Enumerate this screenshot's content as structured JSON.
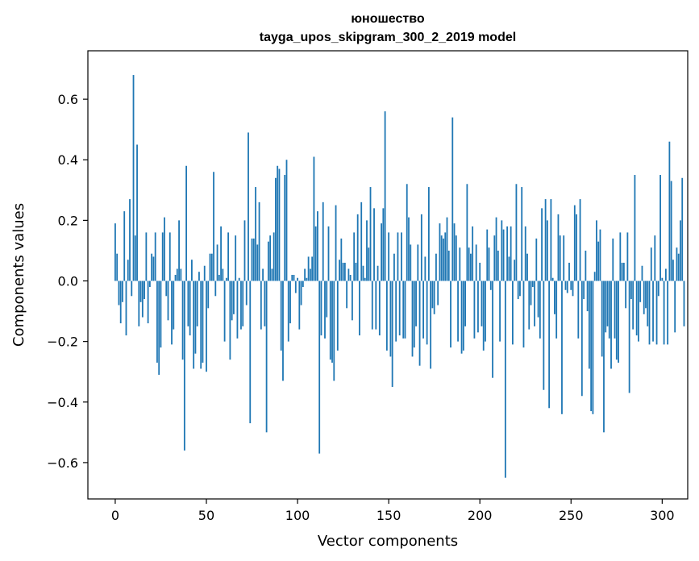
{
  "chart_data": {
    "type": "bar",
    "title": "юношество",
    "subtitle": "tayga_upos_skipgram_300_2_2019 model",
    "xlabel": "Vector components",
    "ylabel": "Components values",
    "xlim": [
      -15,
      314
    ],
    "ylim": [
      -0.72,
      0.76
    ],
    "x_ticks": [
      0,
      50,
      100,
      150,
      200,
      250,
      300
    ],
    "x_tick_labels": [
      "0",
      "50",
      "100",
      "150",
      "200",
      "250",
      "300"
    ],
    "y_ticks": [
      -0.6,
      -0.4,
      -0.2,
      0.0,
      0.2,
      0.4,
      0.6
    ],
    "y_tick_labels": [
      "−0.6",
      "−0.4",
      "−0.2",
      "0.0",
      "0.2",
      "0.4",
      "0.6"
    ],
    "bar_color": "#1f77b4",
    "grid": false,
    "series": [
      {
        "name": "юношество",
        "x_start": 0,
        "values": [
          0.19,
          0.09,
          -0.08,
          -0.14,
          -0.07,
          0.23,
          -0.18,
          0.07,
          0.27,
          -0.05,
          0.68,
          0.15,
          0.45,
          -0.15,
          -0.07,
          -0.12,
          -0.06,
          0.16,
          -0.14,
          -0.02,
          0.09,
          0.08,
          0.16,
          -0.27,
          -0.31,
          -0.22,
          0.16,
          0.21,
          -0.05,
          -0.13,
          0.16,
          -0.21,
          -0.16,
          0.02,
          0.04,
          0.2,
          0.04,
          -0.26,
          -0.56,
          0.38,
          -0.15,
          -0.18,
          0.07,
          -0.29,
          -0.24,
          -0.15,
          0.03,
          -0.29,
          -0.27,
          0.05,
          -0.3,
          -0.09,
          0.09,
          0.09,
          0.36,
          -0.05,
          0.12,
          0.02,
          0.18,
          0.04,
          -0.2,
          0.01,
          0.16,
          -0.26,
          -0.13,
          -0.11,
          0.15,
          -0.19,
          0.01,
          -0.16,
          -0.15,
          0.2,
          -0.08,
          0.49,
          -0.47,
          0.14,
          0.14,
          0.31,
          0.12,
          0.26,
          -0.16,
          0.04,
          -0.15,
          -0.5,
          0.13,
          0.15,
          0.04,
          0.16,
          0.34,
          0.38,
          0.37,
          -0.23,
          -0.33,
          0.35,
          0.4,
          -0.2,
          -0.14,
          0.02,
          0.02,
          -0.04,
          0.01,
          -0.16,
          -0.08,
          -0.02,
          0.04,
          0.01,
          0.08,
          0.04,
          0.08,
          0.41,
          0.18,
          0.23,
          -0.57,
          -0.18,
          0.26,
          -0.19,
          -0.12,
          0.18,
          -0.26,
          -0.27,
          -0.33,
          0.25,
          -0.23,
          0.07,
          0.14,
          0.06,
          0.06,
          -0.09,
          0.04,
          0.02,
          -0.13,
          0.16,
          0.06,
          0.22,
          -0.18,
          0.26,
          0.05,
          0.01,
          0.2,
          0.11,
          0.31,
          -0.16,
          0.24,
          -0.16,
          0.05,
          -0.18,
          0.19,
          0.24,
          0.56,
          -0.23,
          0.16,
          -0.25,
          -0.35,
          0.09,
          -0.2,
          0.16,
          -0.18,
          0.16,
          -0.19,
          -0.19,
          0.32,
          0.21,
          0.12,
          -0.25,
          -0.22,
          -0.15,
          0.12,
          -0.28,
          0.22,
          -0.19,
          0.08,
          -0.21,
          0.31,
          -0.29,
          -0.09,
          -0.11,
          0.09,
          -0.08,
          0.19,
          0.15,
          0.14,
          0.16,
          0.21,
          0.1,
          -0.22,
          0.54,
          0.19,
          0.15,
          -0.2,
          0.11,
          -0.24,
          -0.23,
          -0.15,
          0.32,
          0.11,
          0.09,
          0.18,
          -0.19,
          0.12,
          -0.17,
          0.06,
          -0.15,
          -0.23,
          -0.2,
          0.17,
          0.11,
          -0.03,
          -0.32,
          0.15,
          0.21,
          0.1,
          -0.2,
          0.2,
          0.17,
          -0.65,
          0.18,
          0.08,
          0.18,
          -0.21,
          0.07,
          0.32,
          -0.06,
          -0.05,
          0.31,
          -0.22,
          0.18,
          0.09,
          -0.16,
          -0.08,
          -0.02,
          -0.15,
          0.14,
          -0.12,
          -0.19,
          0.24,
          -0.36,
          0.27,
          0.2,
          -0.42,
          0.27,
          0.01,
          -0.11,
          -0.19,
          0.22,
          0.15,
          -0.44,
          0.15,
          -0.03,
          -0.04,
          0.06,
          -0.03,
          -0.05,
          0.25,
          0.22,
          -0.19,
          0.27,
          -0.38,
          -0.06,
          0.1,
          -0.1,
          -0.29,
          -0.43,
          -0.44,
          0.03,
          0.2,
          0.13,
          0.17,
          -0.25,
          -0.5,
          -0.17,
          -0.15,
          -0.19,
          -0.29,
          0.14,
          -0.19,
          -0.26,
          -0.27,
          0.16,
          0.06,
          0.06,
          -0.09,
          0.16,
          -0.37,
          -0.06,
          -0.16,
          0.35,
          -0.18,
          -0.2,
          -0.07,
          0.05,
          -0.11,
          -0.09,
          -0.15,
          -0.21,
          0.11,
          -0.2,
          0.15,
          -0.21,
          -0.05,
          0.35,
          0.01,
          -0.21,
          0.04,
          -0.21,
          0.46,
          0.33,
          0.07,
          -0.17,
          0.11,
          0.09,
          0.2,
          0.34,
          -0.15
        ]
      }
    ]
  }
}
